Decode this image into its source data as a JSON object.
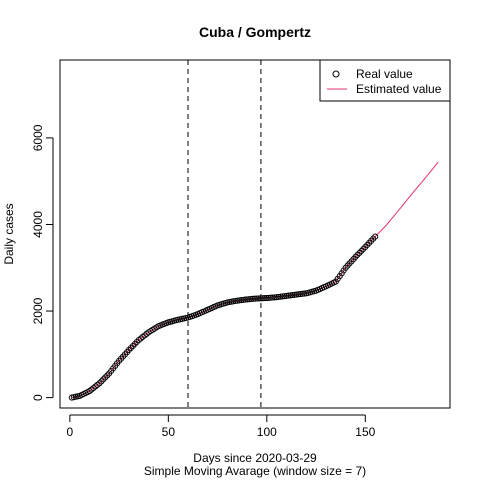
{
  "chart_data": {
    "type": "line",
    "title": "Cuba / Gompertz",
    "xlabel": "Days since 2020-03-29",
    "xlabel_sub": "Simple Moving Avarage (window size = 7)",
    "ylabel": "Daily cases",
    "xlim": [
      -5,
      193
    ],
    "ylim": [
      -240,
      7800
    ],
    "xticks": [
      0,
      50,
      100,
      150
    ],
    "yticks": [
      0,
      2000,
      4000,
      6000
    ],
    "grid": false,
    "legend_position": "top-right",
    "vlines": [
      60,
      97
    ],
    "series": [
      {
        "name": "Real value",
        "style": "points",
        "color": "#000000",
        "keyframes": [
          [
            1,
            0
          ],
          [
            5,
            40
          ],
          [
            10,
            150
          ],
          [
            15,
            330
          ],
          [
            20,
            560
          ],
          [
            25,
            850
          ],
          [
            30,
            1100
          ],
          [
            35,
            1330
          ],
          [
            40,
            1510
          ],
          [
            45,
            1650
          ],
          [
            50,
            1740
          ],
          [
            55,
            1800
          ],
          [
            60,
            1850
          ],
          [
            65,
            1930
          ],
          [
            70,
            2030
          ],
          [
            75,
            2130
          ],
          [
            80,
            2200
          ],
          [
            85,
            2240
          ],
          [
            90,
            2270
          ],
          [
            95,
            2290
          ],
          [
            100,
            2300
          ],
          [
            105,
            2320
          ],
          [
            110,
            2350
          ],
          [
            115,
            2380
          ],
          [
            120,
            2410
          ],
          [
            125,
            2470
          ],
          [
            130,
            2570
          ],
          [
            135,
            2680
          ],
          [
            140,
            3000
          ],
          [
            145,
            3250
          ],
          [
            150,
            3480
          ],
          [
            155,
            3720
          ]
        ]
      },
      {
        "name": "Estimated value",
        "style": "line",
        "color": "#e8336e",
        "keyframes": [
          [
            1,
            0
          ],
          [
            5,
            40
          ],
          [
            10,
            150
          ],
          [
            15,
            330
          ],
          [
            20,
            560
          ],
          [
            25,
            850
          ],
          [
            30,
            1100
          ],
          [
            35,
            1330
          ],
          [
            40,
            1510
          ],
          [
            45,
            1650
          ],
          [
            50,
            1740
          ],
          [
            55,
            1800
          ],
          [
            60,
            1850
          ],
          [
            65,
            1930
          ],
          [
            70,
            2030
          ],
          [
            75,
            2130
          ],
          [
            80,
            2200
          ],
          [
            85,
            2240
          ],
          [
            90,
            2270
          ],
          [
            95,
            2290
          ],
          [
            100,
            2310
          ],
          [
            105,
            2330
          ],
          [
            110,
            2355
          ],
          [
            115,
            2380
          ],
          [
            120,
            2410
          ],
          [
            125,
            2470
          ],
          [
            130,
            2570
          ],
          [
            135,
            2680
          ],
          [
            140,
            3000
          ],
          [
            145,
            3250
          ],
          [
            150,
            3480
          ],
          [
            155,
            3720
          ],
          [
            160,
            3950
          ],
          [
            165,
            4220
          ],
          [
            170,
            4500
          ],
          [
            175,
            4780
          ],
          [
            180,
            5050
          ],
          [
            187,
            5440
          ]
        ]
      }
    ]
  }
}
